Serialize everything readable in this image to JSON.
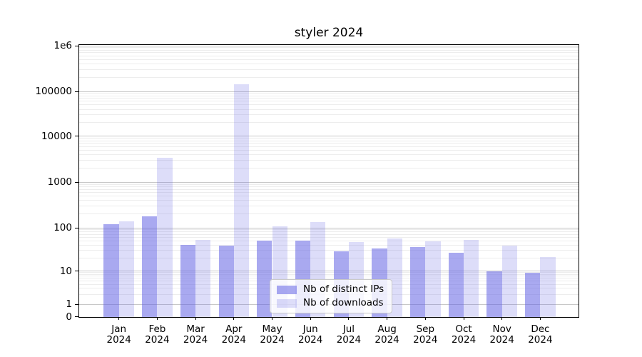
{
  "title": "styler 2024",
  "legend": {
    "items": [
      {
        "label": "Nb of distinct IPs",
        "color": "rgba(98,98,228,0.55)"
      },
      {
        "label": "Nb of downloads",
        "color": "rgba(98,98,228,0.22)"
      }
    ]
  },
  "colors": {
    "bar_distinct_ips": "rgba(98,98,228,0.55)",
    "bar_downloads": "rgba(98,98,228,0.22)",
    "grid_major": "#c8c8c8",
    "grid_minor": "#ededed",
    "spine": "#000000",
    "background": "#ffffff"
  },
  "chart_data": {
    "type": "bar",
    "title": "styler 2024",
    "xlabel": "",
    "ylabel": "",
    "y_scale": "symlog",
    "ylim": [
      0,
      1100000
    ],
    "grid": "horizontal major and log-minor gridlines",
    "legend_position": "lower center, inside axes",
    "yticks": [
      0,
      1,
      10,
      100,
      1000,
      10000,
      100000,
      1000000
    ],
    "ytick_labels": [
      "0",
      "1",
      "10",
      "100",
      "1000",
      "10000",
      "100000",
      "1e6"
    ],
    "categories": [
      "Jan 2024",
      "Feb 2024",
      "Mar 2024",
      "Apr 2024",
      "May 2024",
      "Jun 2024",
      "Jul 2024",
      "Aug 2024",
      "Sep 2024",
      "Oct 2024",
      "Nov 2024",
      "Dec 2024"
    ],
    "series": [
      {
        "name": "Nb of distinct IPs",
        "color": "rgba(98,98,228,0.55)",
        "values": [
          122,
          180,
          40,
          39,
          51,
          50,
          28,
          33,
          36,
          26,
          10,
          9
        ]
      },
      {
        "name": "Nb of downloads",
        "color": "rgba(98,98,228,0.22)",
        "values": [
          140,
          3450,
          53,
          144000,
          106,
          133,
          46,
          56,
          49,
          53,
          39,
          21
        ]
      }
    ]
  }
}
